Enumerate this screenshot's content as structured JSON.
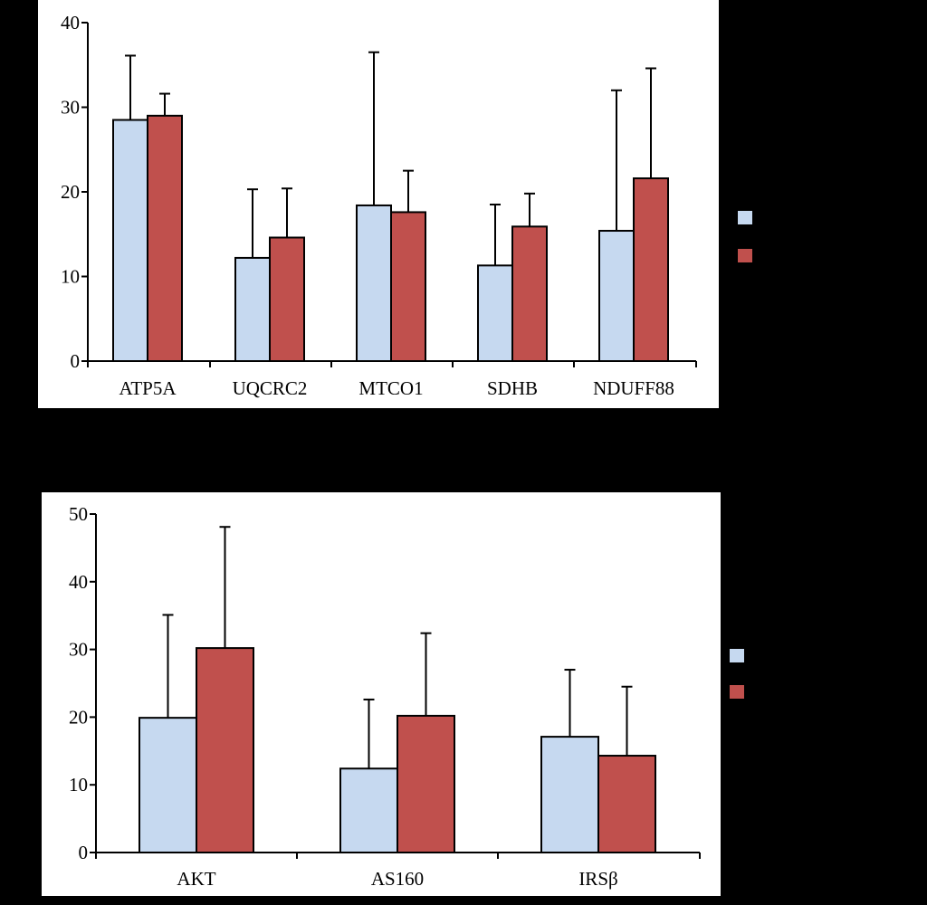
{
  "colors": {
    "background": "#000000",
    "panel": "#ffffff",
    "series_light": "#c6d9f0",
    "series_red": "#c0504d",
    "stroke": "#000000"
  },
  "chart_data": [
    {
      "type": "bar",
      "title": "",
      "xlabel": "",
      "ylabel": "",
      "ylim": [
        0,
        40
      ],
      "yticks": [
        0,
        10,
        20,
        30,
        40
      ],
      "grid": false,
      "legend": "right",
      "categories": [
        "ATP5A",
        "UQCRC2",
        "MTCO1",
        "SDHB",
        "NDUFF88"
      ],
      "series": [
        {
          "color": "#c6d9f0",
          "values": [
            28.5,
            12.2,
            18.4,
            11.3,
            15.4
          ],
          "errors": [
            7.6,
            8.1,
            18.1,
            7.2,
            16.6
          ]
        },
        {
          "color": "#c0504d",
          "values": [
            29.0,
            14.6,
            17.6,
            15.9,
            21.6
          ],
          "errors": [
            2.6,
            5.8,
            4.9,
            3.9,
            13.0
          ]
        }
      ]
    },
    {
      "type": "bar",
      "title": "",
      "xlabel": "",
      "ylabel": "",
      "ylim": [
        0,
        50
      ],
      "yticks": [
        0,
        10,
        20,
        30,
        40,
        50
      ],
      "grid": false,
      "legend": "right",
      "categories": [
        "AKT",
        "AS160",
        "IRSβ"
      ],
      "series": [
        {
          "color": "#c6d9f0",
          "values": [
            19.9,
            12.4,
            17.1
          ],
          "errors": [
            15.2,
            10.2,
            9.9
          ]
        },
        {
          "color": "#c0504d",
          "values": [
            30.2,
            20.2,
            14.3
          ],
          "errors": [
            17.9,
            12.2,
            10.2
          ]
        }
      ]
    }
  ]
}
